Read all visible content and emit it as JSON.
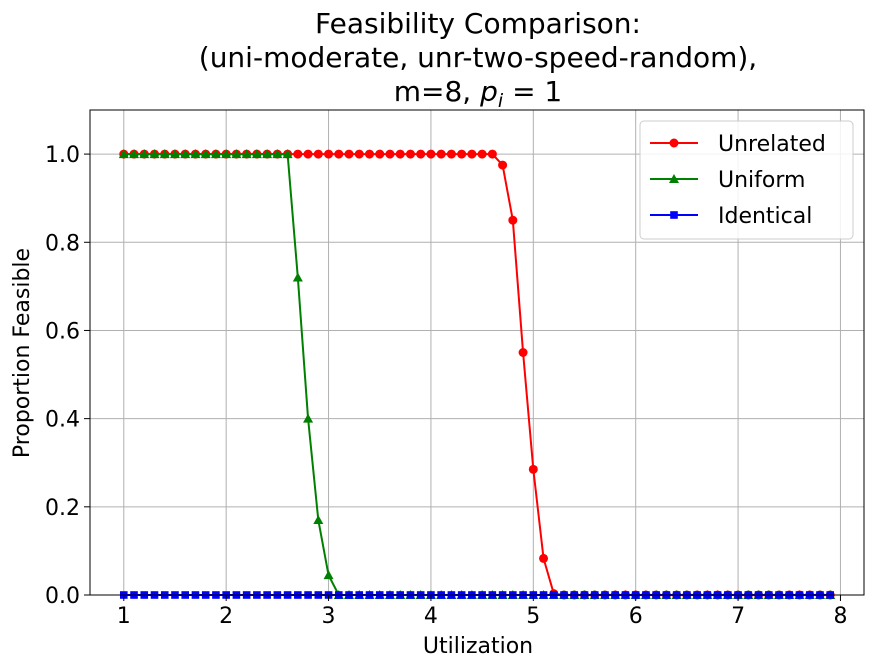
{
  "chart_data": {
    "type": "line",
    "title_lines": [
      "Feasibility Comparison:",
      "(uni-moderate, unr-two-speed-random),"
    ],
    "title_math_line": {
      "prefix": "m=8, ",
      "var": "p",
      "sub": "i",
      "suffix": " = 1"
    },
    "xlabel": "Utilization",
    "ylabel": "Proportion Feasible",
    "xlim": [
      0.67,
      8.23
    ],
    "ylim": [
      0.0,
      1.1
    ],
    "xticks": [
      1,
      2,
      3,
      4,
      5,
      6,
      7,
      8
    ],
    "yticks": [
      0.0,
      0.2,
      0.4,
      0.6,
      0.8,
      1.0
    ],
    "ytick_labels": [
      "0.0",
      "0.2",
      "0.4",
      "0.6",
      "0.8",
      "1.0"
    ],
    "grid": true,
    "legend_position": "top-right",
    "x": [
      1.0,
      1.1,
      1.2,
      1.3,
      1.4,
      1.5,
      1.6,
      1.7,
      1.8,
      1.9,
      2.0,
      2.1,
      2.2,
      2.3,
      2.4,
      2.5,
      2.6,
      2.7,
      2.8,
      2.9,
      3.0,
      3.1,
      3.2,
      3.3,
      3.4,
      3.5,
      3.6,
      3.7,
      3.8,
      3.9,
      4.0,
      4.1,
      4.2,
      4.3,
      4.4,
      4.5,
      4.6,
      4.7,
      4.8,
      4.9,
      5.0,
      5.1,
      5.2,
      5.3,
      5.4,
      5.5,
      5.6,
      5.7,
      5.8,
      5.9,
      6.0,
      6.1,
      6.2,
      6.3,
      6.4,
      6.5,
      6.6,
      6.7,
      6.8,
      6.9,
      7.0,
      7.1,
      7.2,
      7.3,
      7.4,
      7.5,
      7.6,
      7.7,
      7.8,
      7.9
    ],
    "series": [
      {
        "name": "Unrelated",
        "color": "#ff0000",
        "marker": "circle",
        "values": [
          1,
          1,
          1,
          1,
          1,
          1,
          1,
          1,
          1,
          1,
          1,
          1,
          1,
          1,
          1,
          1,
          1,
          1,
          1,
          1,
          1,
          1,
          1,
          1,
          1,
          1,
          1,
          1,
          1,
          1,
          1,
          1,
          1,
          1,
          1,
          1,
          1,
          0.975,
          0.85,
          0.55,
          0.285,
          0.083,
          0.003,
          0,
          0,
          0,
          0,
          0,
          0,
          0,
          0,
          0,
          0,
          0,
          0,
          0,
          0,
          0,
          0,
          0,
          0,
          0,
          0,
          0,
          0,
          0,
          0,
          0,
          0,
          0
        ]
      },
      {
        "name": "Uniform",
        "color": "#008000",
        "marker": "triangle",
        "values": [
          1,
          1,
          1,
          1,
          1,
          1,
          1,
          1,
          1,
          1,
          1,
          1,
          1,
          1,
          1,
          1,
          1,
          0.72,
          0.4,
          0.17,
          0.045,
          0,
          0,
          0,
          0,
          0,
          0,
          0,
          0,
          0,
          0,
          0,
          0,
          0,
          0,
          0,
          0,
          0,
          0,
          0,
          0,
          0,
          0,
          0,
          0,
          0,
          0,
          0,
          0,
          0,
          0,
          0,
          0,
          0,
          0,
          0,
          0,
          0,
          0,
          0,
          0,
          0,
          0,
          0,
          0,
          0,
          0,
          0,
          0,
          0
        ]
      },
      {
        "name": "Identical",
        "color": "#0000ff",
        "marker": "square",
        "values": [
          0,
          0,
          0,
          0,
          0,
          0,
          0,
          0,
          0,
          0,
          0,
          0,
          0,
          0,
          0,
          0,
          0,
          0,
          0,
          0,
          0,
          0,
          0,
          0,
          0,
          0,
          0,
          0,
          0,
          0,
          0,
          0,
          0,
          0,
          0,
          0,
          0,
          0,
          0,
          0,
          0,
          0,
          0,
          0,
          0,
          0,
          0,
          0,
          0,
          0,
          0,
          0,
          0,
          0,
          0,
          0,
          0,
          0,
          0,
          0,
          0,
          0,
          0,
          0,
          0,
          0,
          0,
          0,
          0,
          0
        ]
      }
    ]
  }
}
